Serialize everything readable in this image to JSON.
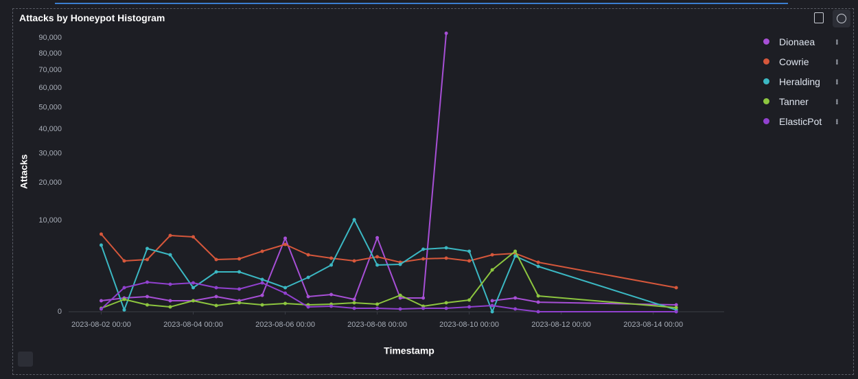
{
  "chart_data": {
    "type": "line",
    "title": "Attacks by Honeypot Histogram",
    "x_label": "Timestamp",
    "y_label": "Attacks",
    "y_scale": "sqrt",
    "grid": false,
    "legend": "right",
    "x": [
      "2023-08-02 00:00",
      "2023-08-02 12:00",
      "2023-08-03 00:00",
      "2023-08-03 12:00",
      "2023-08-04 00:00",
      "2023-08-04 12:00",
      "2023-08-05 00:00",
      "2023-08-05 12:00",
      "2023-08-06 00:00",
      "2023-08-06 12:00",
      "2023-08-07 00:00",
      "2023-08-07 12:00",
      "2023-08-08 00:00",
      "2023-08-08 12:00",
      "2023-08-09 00:00",
      "2023-08-09 12:00",
      "2023-08-10 00:00",
      "2023-08-10 12:00",
      "2023-08-11 00:00",
      "2023-08-11 12:00",
      "2023-08-14 12:00"
    ],
    "xlim": [
      "2023-08-01 07:00",
      "2023-08-15 13:00"
    ],
    "xticks": [
      "2023-08-02 00:00",
      "2023-08-04 00:00",
      "2023-08-06 00:00",
      "2023-08-08 00:00",
      "2023-08-10 00:00",
      "2023-08-12 00:00",
      "2023-08-14 00:00"
    ],
    "ylim": [
      0,
      96000
    ],
    "yticks": [
      0,
      {
        "value": 10000,
        "label": "10,000"
      },
      {
        "value": 20000,
        "label": "20,000"
      },
      {
        "value": 30000,
        "label": "30,000"
      },
      {
        "value": 40000,
        "label": "40,000"
      },
      {
        "value": 50000,
        "label": "50,000"
      },
      {
        "value": 60000,
        "label": "60,000"
      },
      {
        "value": 70000,
        "label": "70,000"
      },
      {
        "value": 80000,
        "label": "80,000"
      },
      {
        "value": 90000,
        "label": "90,000"
      }
    ],
    "series": [
      {
        "name": "Dionaea",
        "color": "#a74fd6",
        "values": [
          144,
          226,
          274,
          144,
          144,
          274,
          144,
          324,
          6480,
          274,
          353,
          183,
          6560,
          226,
          226,
          93000,
          null,
          144,
          226,
          110,
          56
        ]
      },
      {
        "name": "Cowrie",
        "color": "#d6573b",
        "values": [
          7220,
          3095,
          3265,
          6970,
          6720,
          3265,
          3350,
          4380,
          5430,
          3890,
          3440,
          3095,
          3620,
          2930,
          3350,
          3440,
          3095,
          3890,
          4085,
          2930,
          693
        ]
      },
      {
        "name": "Heralding",
        "color": "#3bb8c3",
        "values": [
          5320,
          4,
          4790,
          3890,
          693,
          1900,
          1900,
          1250,
          693,
          1413,
          2615,
          10150,
          2615,
          2690,
          4680,
          4890,
          4380,
          0,
          3710,
          2465,
          4
        ]
      },
      {
        "name": "Tanner",
        "color": "#8dc63f",
        "values": [
          14,
          183,
          56,
          28,
          144,
          46,
          96,
          56,
          81,
          56,
          68,
          96,
          68,
          324,
          36,
          96,
          163,
          2100,
          4380,
          299,
          20
        ]
      },
      {
        "name": "ElasticPot",
        "color": "#9141cf",
        "values": [
          9,
          693,
          1045,
          905,
          997,
          693,
          616,
          997,
          412,
          28,
          36,
          14,
          14,
          9,
          14,
          14,
          28,
          46,
          9,
          0,
          0
        ]
      }
    ]
  }
}
